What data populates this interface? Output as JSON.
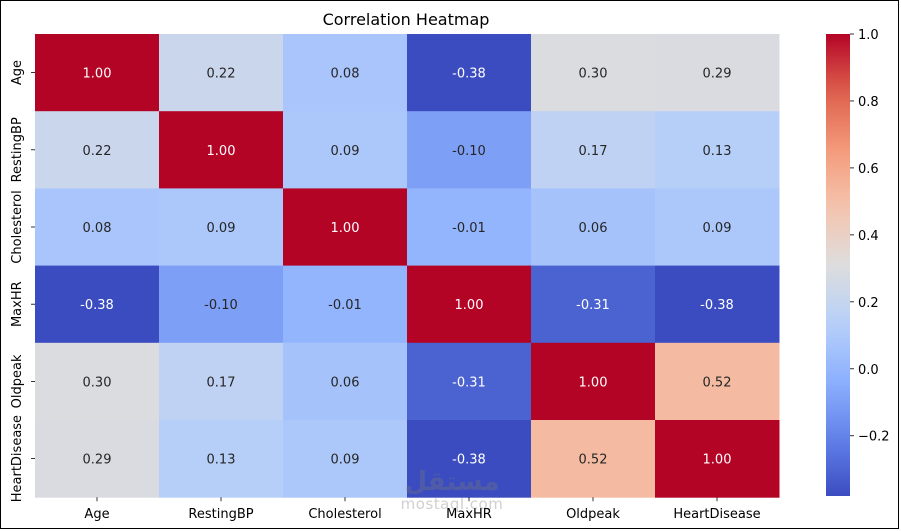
{
  "chart_data": {
    "type": "heatmap",
    "title": "Correlation Heatmap",
    "x_labels": [
      "Age",
      "RestingBP",
      "Cholesterol",
      "MaxHR",
      "Oldpeak",
      "HeartDisease"
    ],
    "y_labels": [
      "Age",
      "RestingBP",
      "Cholesterol",
      "MaxHR",
      "Oldpeak",
      "HeartDisease"
    ],
    "values": [
      [
        1.0,
        0.22,
        0.08,
        -0.38,
        0.3,
        0.29
      ],
      [
        0.22,
        1.0,
        0.09,
        -0.1,
        0.17,
        0.13
      ],
      [
        0.08,
        0.09,
        1.0,
        -0.01,
        0.06,
        0.09
      ],
      [
        -0.38,
        -0.1,
        -0.01,
        1.0,
        -0.31,
        -0.38
      ],
      [
        0.3,
        0.17,
        0.06,
        -0.31,
        1.0,
        0.52
      ],
      [
        0.29,
        0.13,
        0.09,
        -0.38,
        0.52,
        1.0
      ]
    ],
    "annotation_format": "0.00",
    "colormap": "coolwarm",
    "vmin": -0.38,
    "vmax": 1.0,
    "colorbar_ticks": [
      1.0,
      0.8,
      0.6,
      0.4,
      0.2,
      0.0,
      -0.2
    ],
    "colorbar_tick_labels": [
      "1.0",
      "0.8",
      "0.6",
      "0.4",
      "0.2",
      "0.0",
      "−0.2"
    ],
    "legend_placement": "right"
  },
  "watermark": {
    "arabic": "مستقل",
    "latin": "mostaql.com"
  }
}
